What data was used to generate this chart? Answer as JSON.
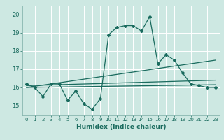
{
  "xlabel": "Humidex (Indice chaleur)",
  "ylabel": "",
  "xlim": [
    -0.5,
    23.5
  ],
  "ylim": [
    14.5,
    20.5
  ],
  "xticks": [
    0,
    1,
    2,
    3,
    4,
    5,
    6,
    7,
    8,
    9,
    10,
    11,
    12,
    13,
    14,
    15,
    16,
    17,
    18,
    19,
    20,
    21,
    22,
    23
  ],
  "yticks": [
    15,
    16,
    17,
    18,
    19,
    20
  ],
  "bg_color": "#cde8e2",
  "line_color": "#1a6b5e",
  "grid_color": "#ffffff",
  "line1_x": [
    0,
    1,
    2,
    3,
    4,
    5,
    6,
    7,
    8,
    9,
    10,
    11,
    12,
    13,
    14,
    15,
    16,
    17,
    18,
    19,
    20,
    21,
    22,
    23
  ],
  "line1_y": [
    16.2,
    16.0,
    15.5,
    16.2,
    16.2,
    15.3,
    15.8,
    15.1,
    14.8,
    15.4,
    18.9,
    19.3,
    19.4,
    19.4,
    19.1,
    19.9,
    17.3,
    17.8,
    17.5,
    16.8,
    16.2,
    16.1,
    16.0,
    16.0
  ],
  "line2_x": [
    0,
    23
  ],
  "line2_y": [
    16.1,
    16.4
  ],
  "line3_x": [
    0,
    23
  ],
  "line3_y": [
    16.0,
    17.5
  ],
  "line4_x": [
    0,
    23
  ],
  "line4_y": [
    16.0,
    16.15
  ]
}
